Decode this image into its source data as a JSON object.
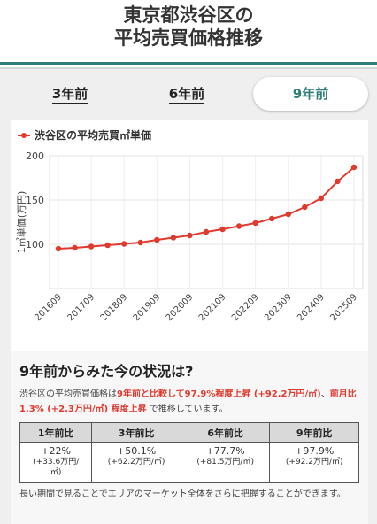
{
  "page": {
    "title_line1": "東京都渋谷区の",
    "title_line2": "平均売買価格推移"
  },
  "tabs": [
    {
      "label": "3年前",
      "active": false
    },
    {
      "label": "6年前",
      "active": false
    },
    {
      "label": "9年前",
      "active": true
    }
  ],
  "chart_data": {
    "type": "line",
    "legend": "渋谷区の平均売買㎡単価",
    "ylabel": "1㎡単価(万円)",
    "ylim": [
      50,
      200
    ],
    "yticks": [
      100,
      150,
      200
    ],
    "xtick_labels": [
      "201609",
      "201709",
      "201809",
      "201909",
      "202009",
      "202109",
      "202209",
      "202309",
      "202409",
      "202509"
    ],
    "series": [
      {
        "name": "渋谷区の平均売買㎡単価",
        "color": "#e03a2f",
        "x": [
          "201609",
          "201703",
          "201709",
          "201803",
          "201809",
          "201903",
          "201909",
          "202003",
          "202009",
          "202103",
          "202109",
          "202203",
          "202209",
          "202303",
          "202309",
          "202403",
          "202409",
          "202503",
          "202509"
        ],
        "values": [
          95,
          96,
          97.5,
          99,
          100.5,
          102,
          105,
          107.5,
          110,
          114,
          117,
          120.5,
          124,
          129,
          134,
          142,
          152,
          171,
          187
        ]
      }
    ],
    "line_color": "#e03a2f",
    "grid": true
  },
  "info": {
    "title": "9年前からみた今の状況は?",
    "text_part1": "渋谷区の平均売買価格は",
    "text_hl1": "9年前と比較して97.9%程度上昇 (+92.2万円/㎡)",
    "text_part2": "、",
    "text_hl2": "前月比 1.3% (+2.3万円/㎡) 程度上昇",
    "text_part3": " で推移しています。",
    "table": {
      "headers": [
        "1年前比",
        "3年前比",
        "6年前比",
        "9年前比"
      ],
      "rows": [
        {
          "pct": "+22%",
          "amt_lines": [
            "(+33.6万円/",
            "㎡)"
          ]
        },
        {
          "pct": "+50.1%",
          "amt_lines": [
            "(+62.2万円/㎡)"
          ]
        },
        {
          "pct": "+77.7%",
          "amt_lines": [
            "(+81.5万円/㎡)"
          ]
        },
        {
          "pct": "+97.9%",
          "amt_lines": [
            "(+92.2万円/㎡)"
          ]
        }
      ]
    },
    "footer": "長い期間で見ることでエリアのマーケット全体をさらに把握することができます。"
  }
}
